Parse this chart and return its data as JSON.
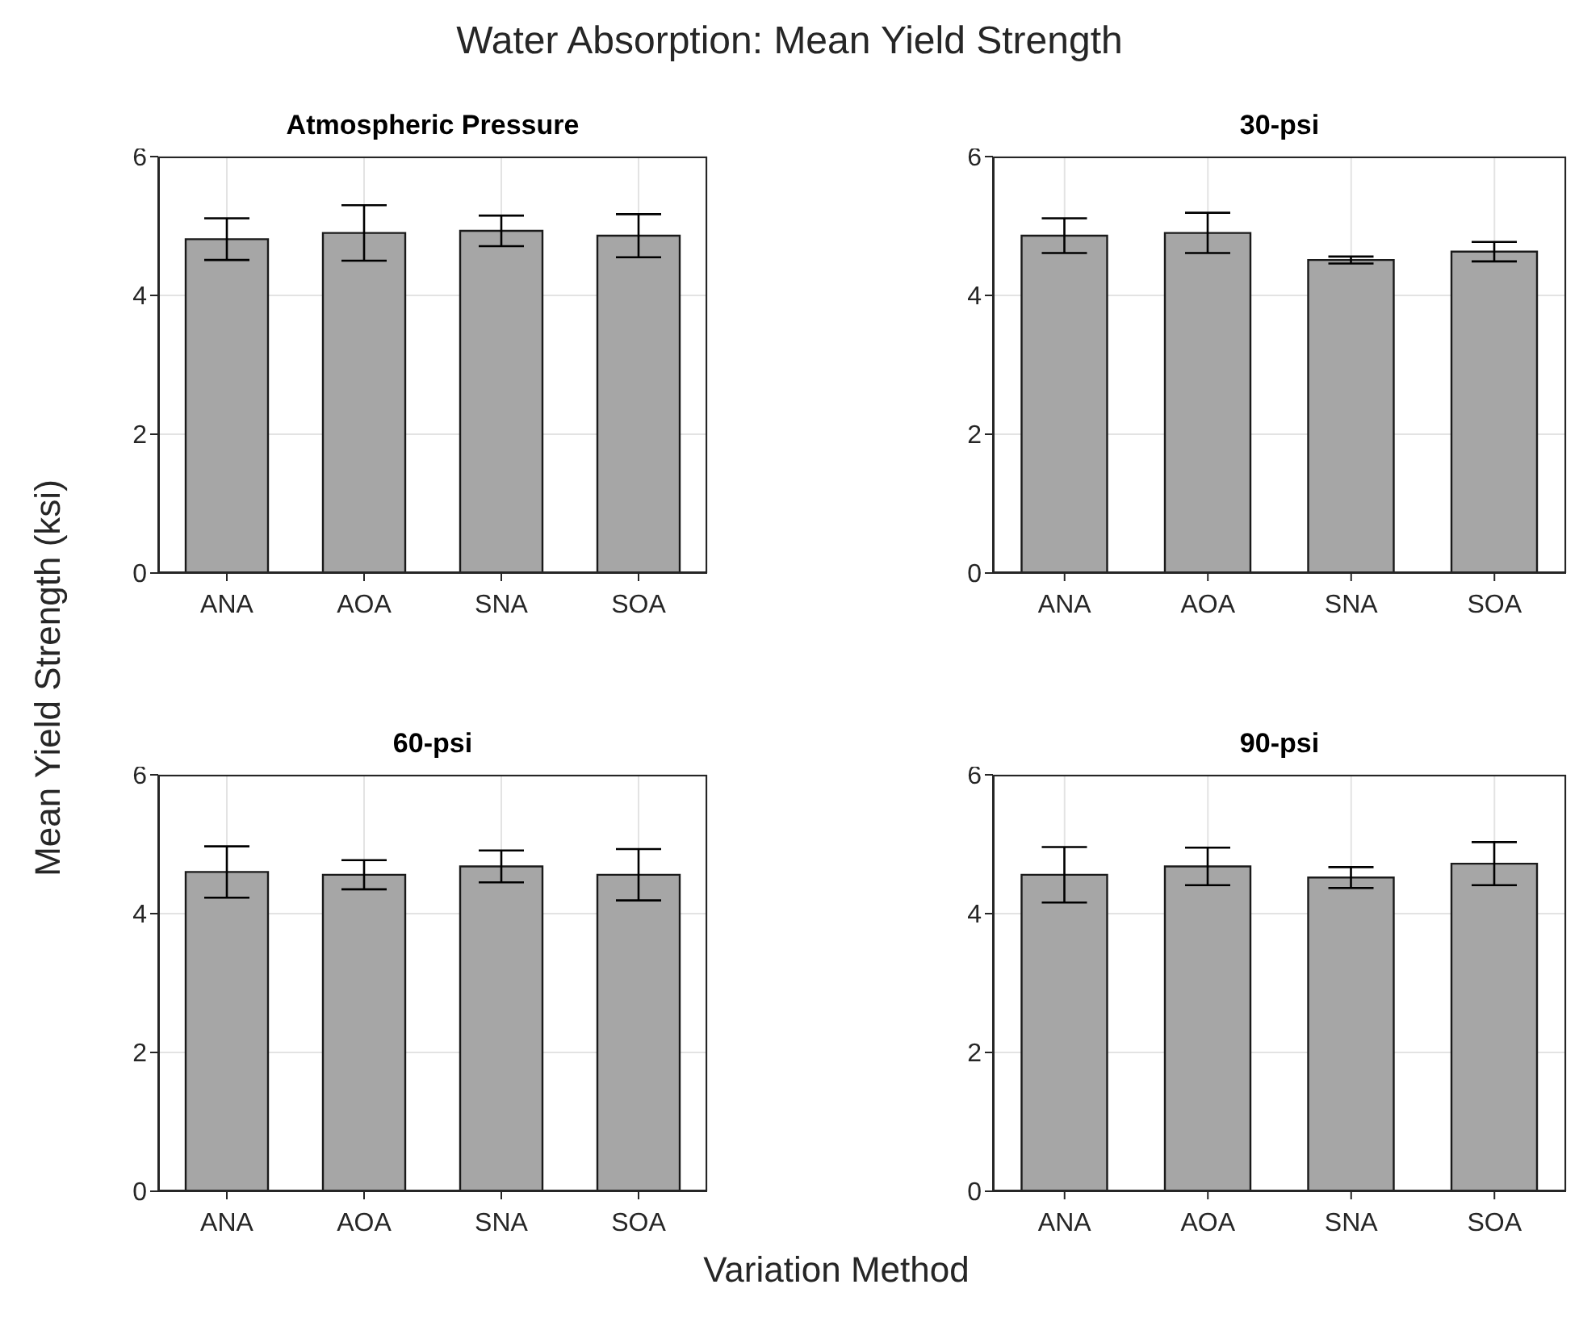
{
  "chart_data": [
    {
      "type": "bar",
      "title": "Atmospheric Pressure",
      "annotations": [
        "Water Absorption: Mean Yield Strength"
      ],
      "ylabel": "Mean Yield Strength (ksi)",
      "categories": [
        "ANA",
        "AOA",
        "SNA",
        "SOA"
      ],
      "values": [
        4.81,
        4.9,
        4.93,
        4.86
      ],
      "errors": [
        0.3,
        0.4,
        0.22,
        0.31
      ],
      "color": "#a6a6a6",
      "ylim": [
        0,
        6
      ],
      "yticks": [
        0,
        2,
        4,
        6
      ],
      "grid": true
    },
    {
      "type": "bar",
      "title": "30-psi",
      "categories": [
        "ANA",
        "AOA",
        "SNA",
        "SOA"
      ],
      "values": [
        4.86,
        4.9,
        4.51,
        4.63
      ],
      "errors": [
        0.25,
        0.29,
        0.05,
        0.14
      ],
      "color": "#a6a6a6",
      "ylim": [
        0,
        6
      ],
      "yticks": [
        0,
        2,
        4,
        6
      ],
      "grid": true
    },
    {
      "type": "bar",
      "title": "60-psi",
      "xlabel": "Variation Method",
      "categories": [
        "ANA",
        "AOA",
        "SNA",
        "SOA"
      ],
      "values": [
        4.6,
        4.56,
        4.68,
        4.56
      ],
      "errors": [
        0.37,
        0.21,
        0.23,
        0.37
      ],
      "color": "#a6a6a6",
      "ylim": [
        0,
        6
      ],
      "yticks": [
        0,
        2,
        4,
        6
      ],
      "grid": true
    },
    {
      "type": "bar",
      "title": "90-psi",
      "categories": [
        "ANA",
        "AOA",
        "SNA",
        "SOA"
      ],
      "values": [
        4.56,
        4.68,
        4.52,
        4.72
      ],
      "errors": [
        0.4,
        0.27,
        0.15,
        0.31
      ],
      "color": "#a6a6a6",
      "ylim": [
        0,
        6
      ],
      "yticks": [
        0,
        2,
        4,
        6
      ],
      "grid": true
    }
  ]
}
